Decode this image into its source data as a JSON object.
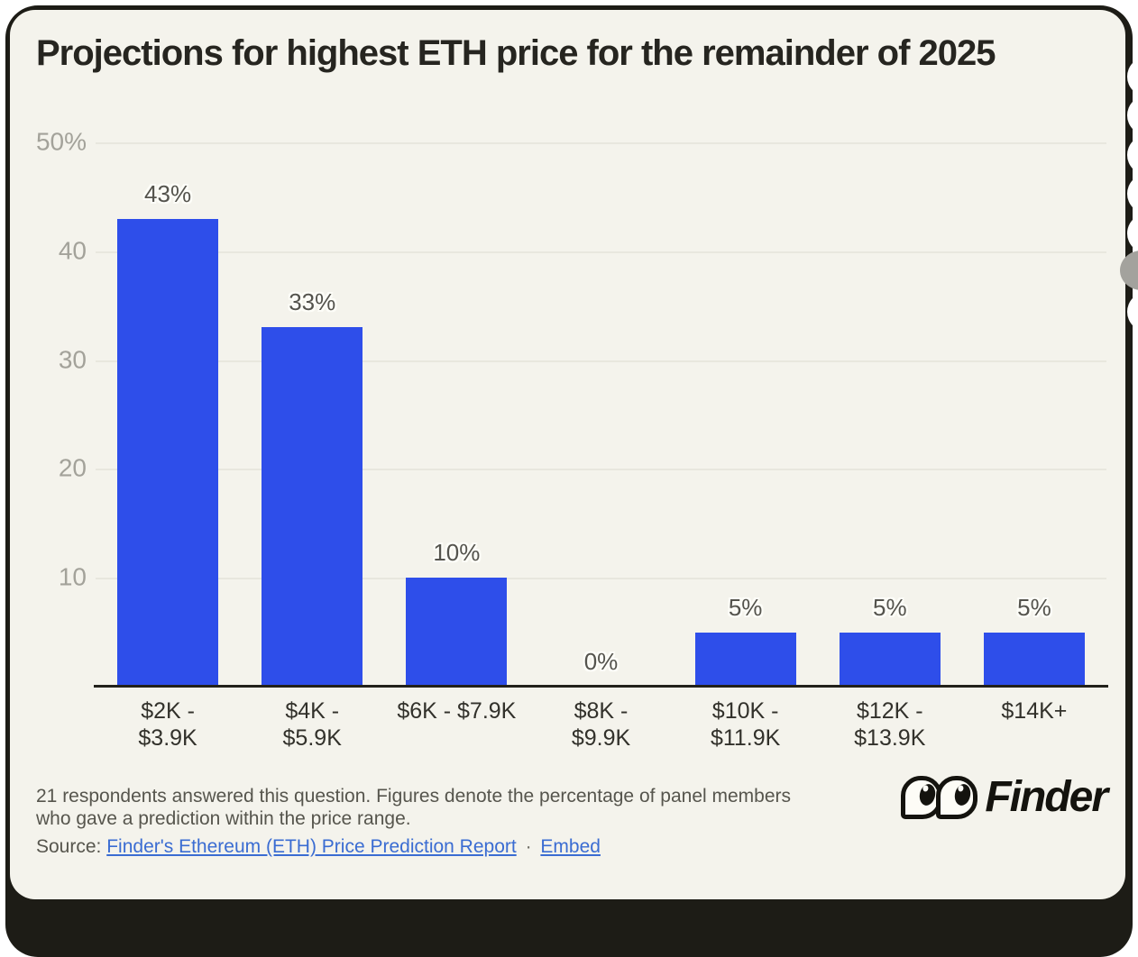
{
  "chart_data": {
    "type": "bar",
    "title": "Projections for highest ETH price for the remainder of 2025",
    "categories": [
      "$2K - $3.9K",
      "$4K - $5.9K",
      "$6K - $7.9K",
      "$8K - $9.9K",
      "$10K - $11.9K",
      "$12K - $13.9K",
      "$14K+"
    ],
    "category_lines": [
      [
        "$2K -",
        "$3.9K"
      ],
      [
        "$4K -",
        "$5.9K"
      ],
      [
        "$6K - $7.9K"
      ],
      [
        "$8K -",
        "$9.9K"
      ],
      [
        "$10K -",
        "$11.9K"
      ],
      [
        "$12K -",
        "$13.9K"
      ],
      [
        "$14K+"
      ]
    ],
    "values": [
      43,
      33,
      10,
      0,
      5,
      5,
      5
    ],
    "unit": "%",
    "ylim": [
      0,
      50
    ],
    "y_ticks": [
      {
        "value": 50,
        "label": "50%"
      },
      {
        "value": 40,
        "label": "40"
      },
      {
        "value": 30,
        "label": "30"
      },
      {
        "value": 20,
        "label": "20"
      },
      {
        "value": 10,
        "label": "10"
      }
    ],
    "grid": true,
    "legend": false,
    "xlabel": "",
    "ylabel": "",
    "bar_color": "#2e4eea"
  },
  "footer": {
    "note": "21 respondents answered this question. Figures denote the percentage of panel members who gave a prediction within the price range.",
    "source_prefix": "Source:",
    "source_link": "Finder's Ethereum (ETH) Price Prediction Report",
    "separator": "·",
    "embed_link": "Embed",
    "logo_text": "Finder"
  },
  "colors": {
    "background": "#f4f3ec",
    "frame": "#1d1c16",
    "bar": "#2e4eea",
    "link": "#3a6cd2",
    "grid": "#e8e7de",
    "axis_label": "#a3a29a",
    "value_label": "#54534d"
  }
}
